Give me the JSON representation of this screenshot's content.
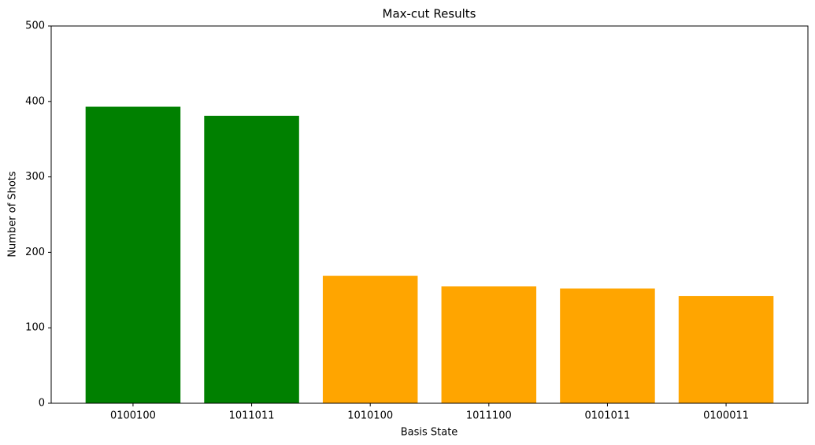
{
  "chart_data": {
    "type": "bar",
    "title": "Max-cut Results",
    "x_label": "Basis State",
    "y_label": "Number of Shots",
    "categories": [
      "0100100",
      "1011011",
      "1010100",
      "1011100",
      "0101011",
      "0100011"
    ],
    "values": [
      393,
      381,
      169,
      155,
      152,
      142
    ],
    "colors": [
      "#008000",
      "#008000",
      "#ffa500",
      "#ffa500",
      "#ffa500",
      "#ffa500"
    ],
    "ylim": [
      0,
      500
    ],
    "yticks": [
      0,
      100,
      200,
      300,
      400,
      500
    ],
    "grid": false
  }
}
